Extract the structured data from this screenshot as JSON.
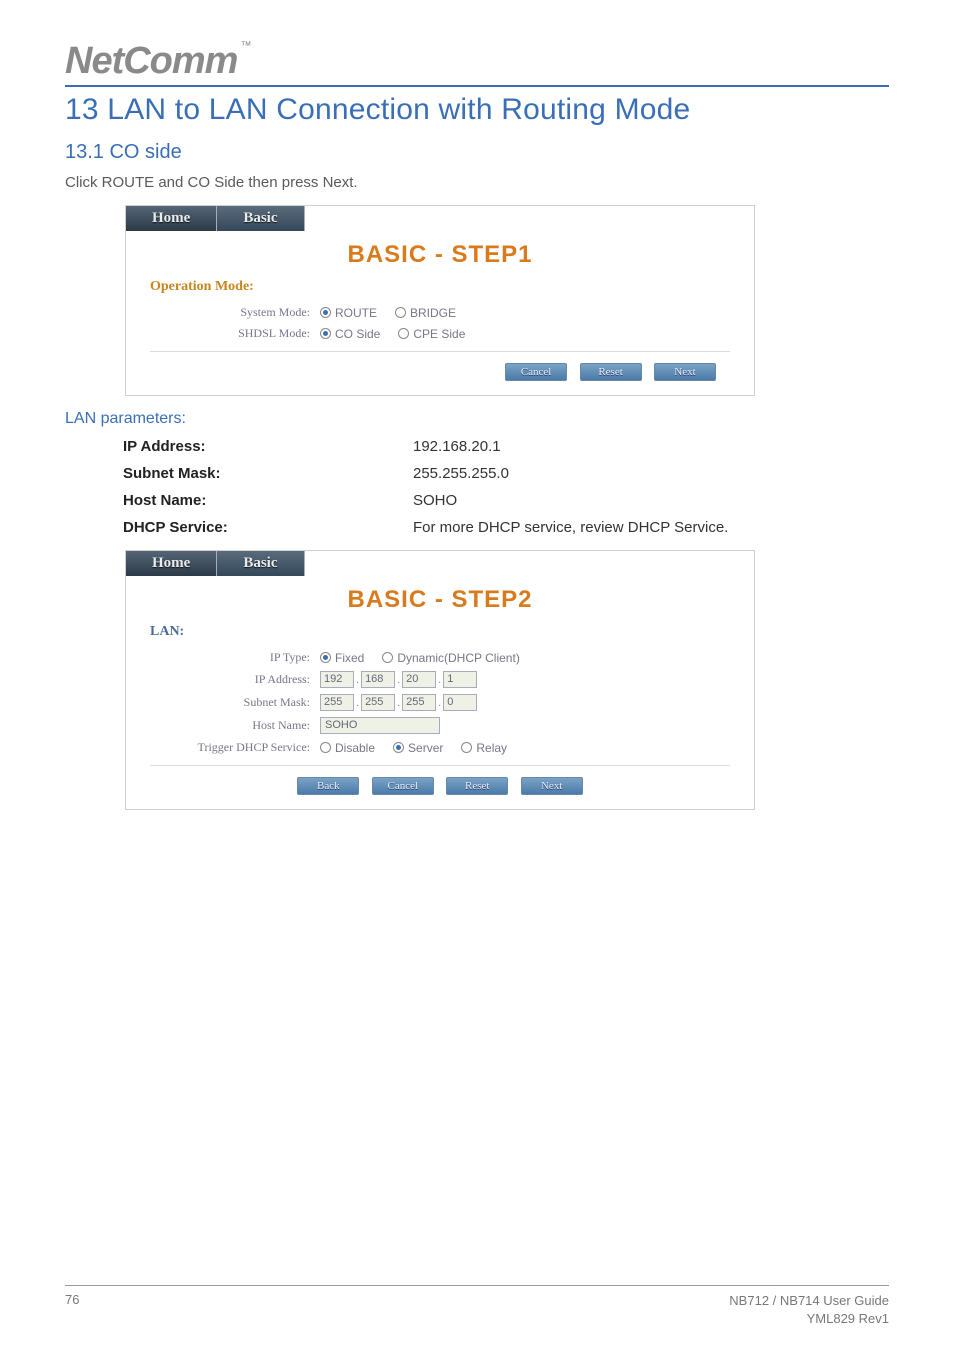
{
  "logo": {
    "text": "NetComm",
    "tm": "™"
  },
  "title": "13 LAN to LAN Connection with Routing Mode",
  "subsection": "13.1 CO side",
  "intro": "Click ROUTE and CO Side then press Next.",
  "tabs": {
    "home": "Home",
    "basic": "Basic"
  },
  "step1": {
    "heading": "BASIC - STEP1",
    "operation_mode_label": "Operation Mode:",
    "system_mode_label": "System Mode:",
    "system_mode_route": "ROUTE",
    "system_mode_bridge": "BRIDGE",
    "shdsl_mode_label": "SHDSL Mode:",
    "shdsl_co": "CO Side",
    "shdsl_cpe": "CPE Side",
    "buttons": {
      "cancel": "Cancel",
      "reset": "Reset",
      "next": "Next"
    }
  },
  "lan_parameters_label": "LAN parameters:",
  "params": {
    "ip_label": "IP Address:",
    "ip_value": "192.168.20.1",
    "subnet_label": "Subnet Mask:",
    "subnet_value": "255.255.255.0",
    "host_label": "Host Name:",
    "host_value": "SOHO",
    "dhcp_label": "DHCP Service:",
    "dhcp_value": "For more DHCP service, review DHCP Service."
  },
  "step2": {
    "heading": "BASIC - STEP2",
    "lan_label": "LAN:",
    "ip_type_label": "IP Type:",
    "ip_type_fixed": "Fixed",
    "ip_type_dynamic": "Dynamic(DHCP Client)",
    "ip_addr_label": "IP Address:",
    "ip_octets": [
      "192",
      "168",
      "20",
      "1"
    ],
    "subnet_label": "Subnet Mask:",
    "subnet_octets": [
      "255",
      "255",
      "255",
      "0"
    ],
    "host_label": "Host Name:",
    "host_value": "SOHO",
    "dhcp_service_label": "Trigger DHCP Service:",
    "dhcp_disable": "Disable",
    "dhcp_server": "Server",
    "dhcp_relay": "Relay",
    "buttons": {
      "back": "Back",
      "cancel": "Cancel",
      "reset": "Reset",
      "next": "Next"
    }
  },
  "footer": {
    "page": "76",
    "guide1": "NB712 / NB714 User Guide",
    "guide2": "YML829 Rev1"
  }
}
